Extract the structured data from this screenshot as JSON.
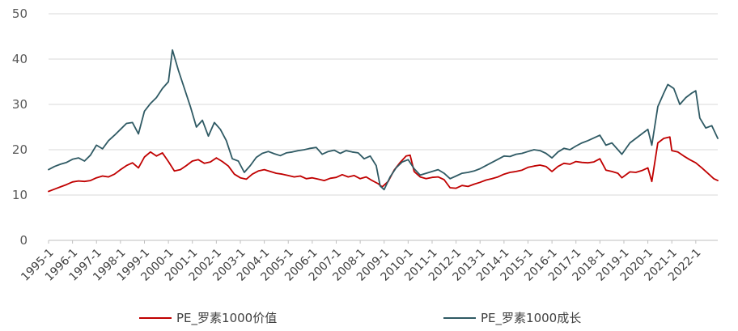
{
  "chart_data": {
    "type": "line",
    "title": "",
    "xlabel": "",
    "ylabel": "",
    "ylim": [
      0,
      50
    ],
    "yticks": [
      0,
      10,
      20,
      30,
      40,
      50
    ],
    "grid": "horizontal",
    "legend_position": "bottom",
    "x_start": "1995-1",
    "x_end": "2022-12",
    "x_tick_labels": [
      "1995-1",
      "1996-1",
      "1997-1",
      "1998-1",
      "1999-1",
      "2000-1",
      "2001-1",
      "2002-1",
      "2003-1",
      "2004-1",
      "2005-1",
      "2006-1",
      "2007-1",
      "2008-1",
      "2009-1",
      "2010-1",
      "2011-1",
      "2012-1",
      "2013-1",
      "2014-1",
      "2015-1",
      "2016-1",
      "2017-1",
      "2018-1",
      "2019-1",
      "2020-1",
      "2021-1",
      "2022-1"
    ],
    "colors": {
      "value": "#c00000",
      "growth": "#2f5a64"
    },
    "series": [
      {
        "name": "PE_罗素1000价值",
        "color": "#c00000",
        "points": [
          [
            "1995-1",
            10.8
          ],
          [
            "1995-4",
            11.3
          ],
          [
            "1995-7",
            11.8
          ],
          [
            "1995-10",
            12.3
          ],
          [
            "1996-1",
            12.9
          ],
          [
            "1996-4",
            13.1
          ],
          [
            "1996-7",
            13.0
          ],
          [
            "1996-10",
            13.2
          ],
          [
            "1997-1",
            13.8
          ],
          [
            "1997-4",
            14.2
          ],
          [
            "1997-7",
            14.0
          ],
          [
            "1997-10",
            14.6
          ],
          [
            "1998-1",
            15.6
          ],
          [
            "1998-4",
            16.5
          ],
          [
            "1998-7",
            17.1
          ],
          [
            "1998-10",
            16.0
          ],
          [
            "1999-1",
            18.4
          ],
          [
            "1999-4",
            19.5
          ],
          [
            "1999-7",
            18.6
          ],
          [
            "1999-10",
            19.3
          ],
          [
            "2000-1",
            17.4
          ],
          [
            "2000-4",
            15.3
          ],
          [
            "2000-7",
            15.6
          ],
          [
            "2000-10",
            16.5
          ],
          [
            "2001-1",
            17.5
          ],
          [
            "2001-4",
            17.8
          ],
          [
            "2001-7",
            17.0
          ],
          [
            "2001-10",
            17.3
          ],
          [
            "2002-1",
            18.2
          ],
          [
            "2002-4",
            17.4
          ],
          [
            "2002-7",
            16.4
          ],
          [
            "2002-10",
            14.6
          ],
          [
            "2003-1",
            13.8
          ],
          [
            "2003-4",
            13.5
          ],
          [
            "2003-7",
            14.6
          ],
          [
            "2003-10",
            15.3
          ],
          [
            "2004-1",
            15.6
          ],
          [
            "2004-4",
            15.2
          ],
          [
            "2004-7",
            14.8
          ],
          [
            "2004-10",
            14.6
          ],
          [
            "2005-1",
            14.3
          ],
          [
            "2005-4",
            14.0
          ],
          [
            "2005-7",
            14.2
          ],
          [
            "2005-10",
            13.6
          ],
          [
            "2006-1",
            13.8
          ],
          [
            "2006-4",
            13.5
          ],
          [
            "2006-7",
            13.2
          ],
          [
            "2006-10",
            13.7
          ],
          [
            "2007-1",
            13.9
          ],
          [
            "2007-4",
            14.5
          ],
          [
            "2007-7",
            14.0
          ],
          [
            "2007-10",
            14.3
          ],
          [
            "2008-1",
            13.6
          ],
          [
            "2008-4",
            14.0
          ],
          [
            "2008-7",
            13.2
          ],
          [
            "2008-10",
            12.5
          ],
          [
            "2008-12",
            11.8
          ],
          [
            "2009-3",
            13.0
          ],
          [
            "2009-6",
            15.5
          ],
          [
            "2009-9",
            17.2
          ],
          [
            "2009-12",
            18.6
          ],
          [
            "2010-2",
            18.8
          ],
          [
            "2010-4",
            15.2
          ],
          [
            "2010-7",
            14.0
          ],
          [
            "2010-10",
            13.6
          ],
          [
            "2011-1",
            13.9
          ],
          [
            "2011-4",
            14.0
          ],
          [
            "2011-7",
            13.4
          ],
          [
            "2011-10",
            11.6
          ],
          [
            "2012-1",
            11.5
          ],
          [
            "2012-4",
            12.1
          ],
          [
            "2012-7",
            11.9
          ],
          [
            "2012-10",
            12.4
          ],
          [
            "2013-1",
            12.8
          ],
          [
            "2013-4",
            13.3
          ],
          [
            "2013-7",
            13.6
          ],
          [
            "2013-10",
            14.0
          ],
          [
            "2014-1",
            14.6
          ],
          [
            "2014-4",
            15.0
          ],
          [
            "2014-7",
            15.2
          ],
          [
            "2014-10",
            15.5
          ],
          [
            "2015-1",
            16.1
          ],
          [
            "2015-4",
            16.4
          ],
          [
            "2015-7",
            16.6
          ],
          [
            "2015-10",
            16.3
          ],
          [
            "2016-1",
            15.2
          ],
          [
            "2016-4",
            16.3
          ],
          [
            "2016-7",
            17.0
          ],
          [
            "2016-10",
            16.8
          ],
          [
            "2017-1",
            17.4
          ],
          [
            "2017-4",
            17.2
          ],
          [
            "2017-7",
            17.1
          ],
          [
            "2017-10",
            17.3
          ],
          [
            "2018-1",
            18.0
          ],
          [
            "2018-4",
            15.5
          ],
          [
            "2018-7",
            15.2
          ],
          [
            "2018-10",
            14.8
          ],
          [
            "2018-12",
            13.8
          ],
          [
            "2019-4",
            15.1
          ],
          [
            "2019-7",
            15.0
          ],
          [
            "2019-10",
            15.4
          ],
          [
            "2020-1",
            16.0
          ],
          [
            "2020-3",
            13.0
          ],
          [
            "2020-6",
            21.5
          ],
          [
            "2020-9",
            22.5
          ],
          [
            "2020-12",
            22.8
          ],
          [
            "2021-1",
            19.8
          ],
          [
            "2021-4",
            19.5
          ],
          [
            "2021-7",
            18.6
          ],
          [
            "2021-10",
            17.8
          ],
          [
            "2022-1",
            17.1
          ],
          [
            "2022-4",
            16.0
          ],
          [
            "2022-7",
            14.8
          ],
          [
            "2022-10",
            13.6
          ],
          [
            "2022-12",
            13.2
          ]
        ]
      },
      {
        "name": "PE_罗素1000成长",
        "color": "#2f5a64",
        "points": [
          [
            "1995-1",
            15.6
          ],
          [
            "1995-4",
            16.3
          ],
          [
            "1995-7",
            16.8
          ],
          [
            "1995-10",
            17.2
          ],
          [
            "1996-1",
            17.9
          ],
          [
            "1996-4",
            18.2
          ],
          [
            "1996-7",
            17.5
          ],
          [
            "1996-10",
            18.8
          ],
          [
            "1997-1",
            21.0
          ],
          [
            "1997-4",
            20.2
          ],
          [
            "1997-7",
            22.0
          ],
          [
            "1997-10",
            23.2
          ],
          [
            "1998-1",
            24.5
          ],
          [
            "1998-4",
            25.8
          ],
          [
            "1998-7",
            26.0
          ],
          [
            "1998-10",
            23.5
          ],
          [
            "1999-1",
            28.5
          ],
          [
            "1999-4",
            30.2
          ],
          [
            "1999-7",
            31.5
          ],
          [
            "1999-10",
            33.5
          ],
          [
            "2000-1",
            35.0
          ],
          [
            "2000-3",
            42.0
          ],
          [
            "2000-6",
            37.5
          ],
          [
            "2000-9",
            33.5
          ],
          [
            "2000-12",
            29.5
          ],
          [
            "2001-3",
            25.0
          ],
          [
            "2001-6",
            26.5
          ],
          [
            "2001-9",
            23.0
          ],
          [
            "2001-12",
            26.0
          ],
          [
            "2002-3",
            24.5
          ],
          [
            "2002-6",
            22.0
          ],
          [
            "2002-9",
            18.0
          ],
          [
            "2002-12",
            17.5
          ],
          [
            "2003-3",
            15.0
          ],
          [
            "2003-6",
            16.5
          ],
          [
            "2003-9",
            18.3
          ],
          [
            "2003-12",
            19.2
          ],
          [
            "2004-3",
            19.6
          ],
          [
            "2004-6",
            19.1
          ],
          [
            "2004-9",
            18.7
          ],
          [
            "2004-12",
            19.3
          ],
          [
            "2005-3",
            19.5
          ],
          [
            "2005-6",
            19.8
          ],
          [
            "2005-9",
            20.0
          ],
          [
            "2005-12",
            20.3
          ],
          [
            "2006-3",
            20.5
          ],
          [
            "2006-6",
            19.0
          ],
          [
            "2006-9",
            19.6
          ],
          [
            "2006-12",
            19.9
          ],
          [
            "2007-3",
            19.2
          ],
          [
            "2007-6",
            19.8
          ],
          [
            "2007-9",
            19.5
          ],
          [
            "2007-12",
            19.3
          ],
          [
            "2008-3",
            18.0
          ],
          [
            "2008-6",
            18.6
          ],
          [
            "2008-9",
            16.5
          ],
          [
            "2008-11",
            12.0
          ],
          [
            "2009-1",
            11.2
          ],
          [
            "2009-4",
            14.0
          ],
          [
            "2009-7",
            16.0
          ],
          [
            "2009-10",
            17.3
          ],
          [
            "2010-1",
            17.8
          ],
          [
            "2010-4",
            15.8
          ],
          [
            "2010-7",
            14.4
          ],
          [
            "2010-10",
            14.8
          ],
          [
            "2011-1",
            15.2
          ],
          [
            "2011-4",
            15.6
          ],
          [
            "2011-7",
            14.8
          ],
          [
            "2011-10",
            13.6
          ],
          [
            "2012-1",
            14.2
          ],
          [
            "2012-4",
            14.8
          ],
          [
            "2012-7",
            15.0
          ],
          [
            "2012-10",
            15.3
          ],
          [
            "2013-1",
            15.8
          ],
          [
            "2013-4",
            16.5
          ],
          [
            "2013-7",
            17.2
          ],
          [
            "2013-10",
            17.9
          ],
          [
            "2014-1",
            18.6
          ],
          [
            "2014-4",
            18.5
          ],
          [
            "2014-7",
            19.0
          ],
          [
            "2014-10",
            19.2
          ],
          [
            "2015-1",
            19.6
          ],
          [
            "2015-4",
            20.0
          ],
          [
            "2015-7",
            19.8
          ],
          [
            "2015-10",
            19.2
          ],
          [
            "2016-1",
            18.2
          ],
          [
            "2016-4",
            19.5
          ],
          [
            "2016-7",
            20.3
          ],
          [
            "2016-10",
            20.0
          ],
          [
            "2017-1",
            20.8
          ],
          [
            "2017-4",
            21.5
          ],
          [
            "2017-7",
            22.0
          ],
          [
            "2017-10",
            22.6
          ],
          [
            "2018-1",
            23.2
          ],
          [
            "2018-4",
            21.0
          ],
          [
            "2018-7",
            21.5
          ],
          [
            "2018-10",
            20.0
          ],
          [
            "2018-12",
            19.0
          ],
          [
            "2019-4",
            21.5
          ],
          [
            "2019-7",
            22.5
          ],
          [
            "2019-10",
            23.5
          ],
          [
            "2020-1",
            24.5
          ],
          [
            "2020-3",
            21.0
          ],
          [
            "2020-6",
            29.5
          ],
          [
            "2020-9",
            32.5
          ],
          [
            "2020-11",
            34.4
          ],
          [
            "2021-2",
            33.5
          ],
          [
            "2021-5",
            30.0
          ],
          [
            "2021-8",
            31.5
          ],
          [
            "2021-11",
            32.5
          ],
          [
            "2022-1",
            33.0
          ],
          [
            "2022-3",
            27.0
          ],
          [
            "2022-6",
            24.8
          ],
          [
            "2022-9",
            25.3
          ],
          [
            "2022-12",
            22.5
          ]
        ]
      }
    ]
  }
}
